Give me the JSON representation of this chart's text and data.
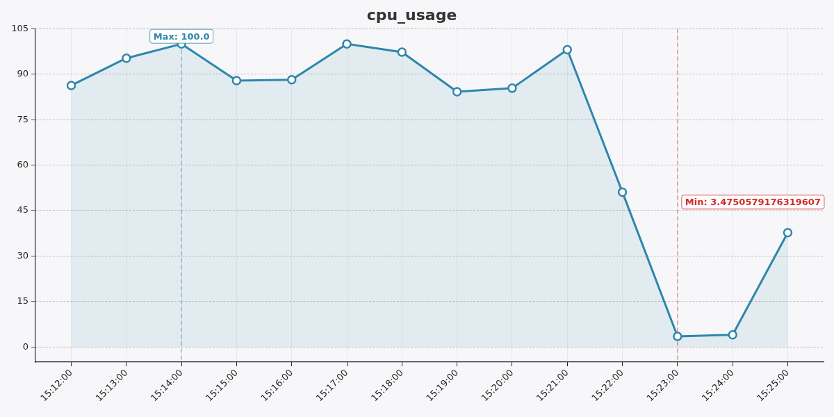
{
  "chart_data": {
    "type": "area",
    "title": "cpu_usage",
    "categories": [
      "15:12:00",
      "15:13:00",
      "15:14:00",
      "15:15:00",
      "15:16:00",
      "15:17:00",
      "15:18:00",
      "15:19:00",
      "15:20:00",
      "15:21:00",
      "15:22:00",
      "15:23:00",
      "15:24:00",
      "15:25:00"
    ],
    "series": [
      {
        "color": "#2e86ab",
        "values": [
          86.3,
          95.3,
          100.0,
          87.9,
          88.2,
          100.0,
          97.3,
          84.2,
          85.4,
          98.1,
          51.1,
          3.4750579176319607,
          4,
          37.7
        ]
      }
    ],
    "ylim": [
      -5,
      105
    ],
    "yticks": [
      0,
      15,
      30,
      45,
      60,
      75,
      90,
      105
    ],
    "grid": true,
    "marker": "circle",
    "ref_lines": [
      {
        "axis": "x",
        "value": "15:14:00",
        "color": "#2e86ab",
        "line_style": "dashed"
      },
      {
        "axis": "x",
        "value": "15:23:00",
        "color": "#d62728",
        "line_style": "dashed",
        "label": "Min: 3.4750579176319607"
      }
    ],
    "annotations": [
      {
        "text": "Max: 100.0",
        "x": "15:14:00",
        "y": 100.0
      }
    ]
  }
}
